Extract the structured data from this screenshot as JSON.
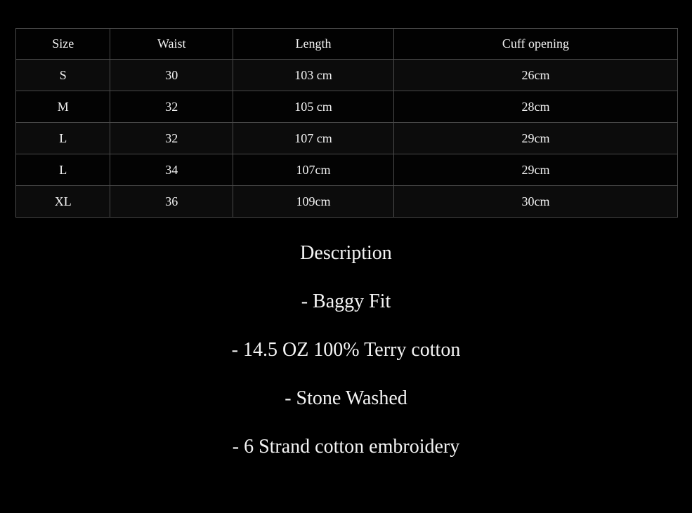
{
  "size_chart": {
    "headers": [
      "Size",
      "Waist",
      "Length",
      "Cuff opening"
    ],
    "rows": [
      [
        "S",
        "30",
        "103 cm",
        "26cm"
      ],
      [
        "M",
        "32",
        "105 cm",
        "28cm"
      ],
      [
        "L",
        "32",
        "107 cm",
        "29cm"
      ],
      [
        "L",
        "34",
        "107cm",
        "29cm"
      ],
      [
        "XL",
        "36",
        "109cm",
        "30cm"
      ]
    ]
  },
  "description": {
    "title": "Description",
    "items": [
      "- Baggy Fit",
      "- 14.5 OZ 100% Terry cotton",
      "- Stone Washed",
      "- 6 Strand cotton embroidery"
    ]
  }
}
